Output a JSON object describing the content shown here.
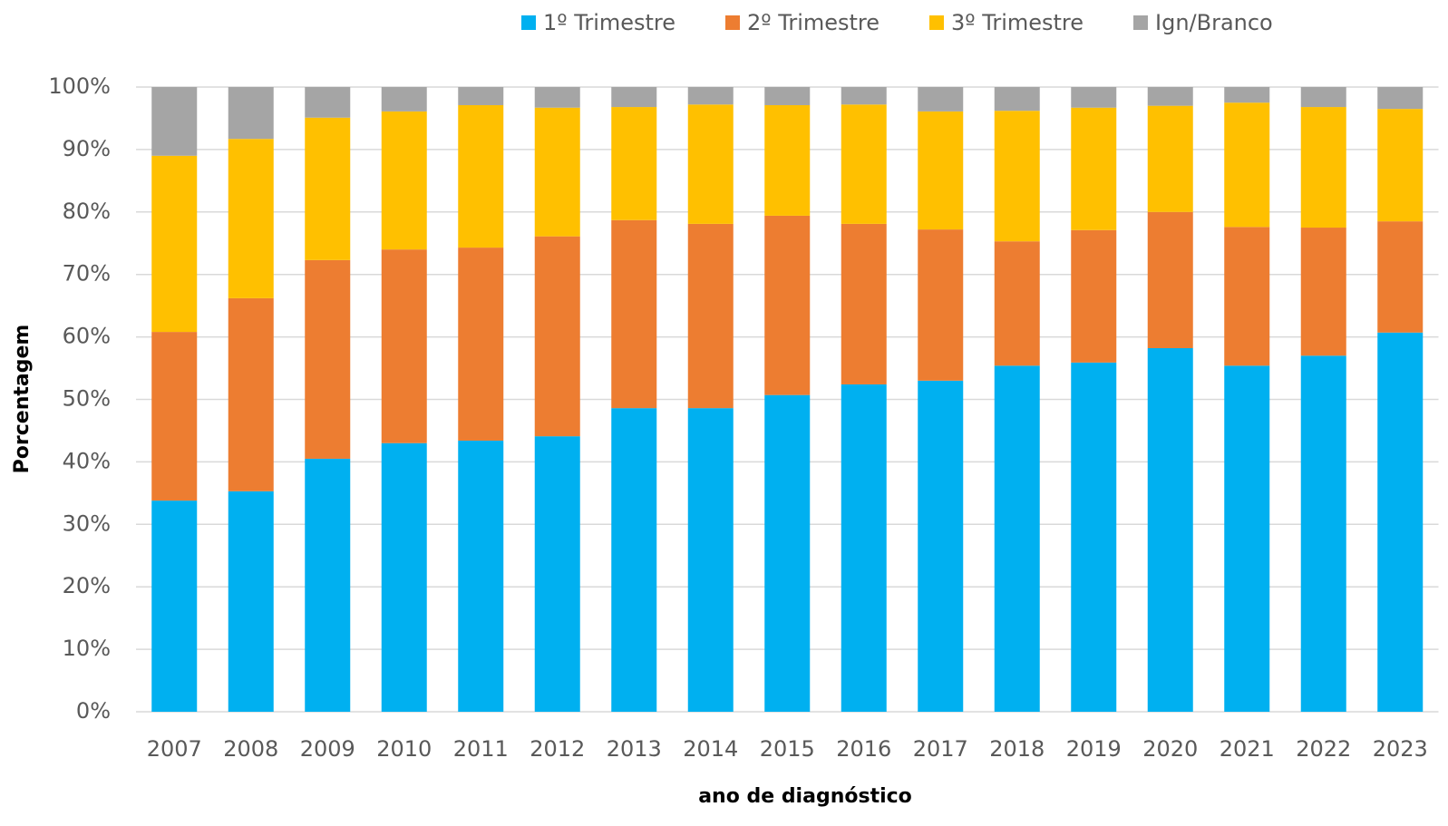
{
  "chart_data": {
    "type": "stacked_bar",
    "x_label": "ano de diagnóstico",
    "y_label": "Porcentagem",
    "categories": [
      "2007",
      "2008",
      "2009",
      "2010",
      "2011",
      "2012",
      "2013",
      "2014",
      "2015",
      "2016",
      "2017",
      "2018",
      "2019",
      "2020",
      "2021",
      "2022",
      "2023"
    ],
    "series": [
      {
        "name": "1º Trimestre",
        "color": "#00b0f0",
        "values": [
          33.8,
          35.3,
          40.5,
          43.0,
          43.4,
          44.1,
          48.6,
          48.6,
          50.7,
          52.4,
          53.0,
          55.4,
          55.9,
          58.2,
          55.4,
          57.0,
          60.7
        ]
      },
      {
        "name": "2º Trimestre",
        "color": "#ed7d31",
        "values": [
          27.0,
          30.9,
          31.8,
          31.0,
          30.9,
          32.0,
          30.1,
          29.5,
          28.7,
          25.7,
          24.2,
          19.9,
          21.2,
          21.8,
          22.2,
          20.5,
          17.8
        ]
      },
      {
        "name": "3º Trimestre",
        "color": "#ffc000",
        "values": [
          28.2,
          25.5,
          22.8,
          22.1,
          22.8,
          20.6,
          18.1,
          19.1,
          17.7,
          19.1,
          18.9,
          20.9,
          19.6,
          17.0,
          19.9,
          19.3,
          18.0
        ]
      },
      {
        "name": "Ign/Branco",
        "color": "#a5a5a5",
        "values": [
          11.0,
          8.3,
          4.9,
          3.9,
          2.9,
          3.3,
          3.2,
          2.8,
          2.9,
          2.8,
          3.9,
          3.8,
          3.3,
          3.0,
          2.5,
          3.2,
          3.5
        ]
      }
    ],
    "ylim": [
      0,
      100
    ],
    "yticks": [
      {
        "value": 0,
        "label": "0%"
      },
      {
        "value": 10,
        "label": "10%"
      },
      {
        "value": 20,
        "label": "20%"
      },
      {
        "value": 30,
        "label": "30%"
      },
      {
        "value": 40,
        "label": "40%"
      },
      {
        "value": 50,
        "label": "50%"
      },
      {
        "value": 60,
        "label": "60%"
      },
      {
        "value": 70,
        "label": "70%"
      },
      {
        "value": 80,
        "label": "80%"
      },
      {
        "value": 90,
        "label": "90%"
      },
      {
        "value": 100,
        "label": "100%"
      }
    ],
    "grid": true,
    "legend": "top"
  }
}
